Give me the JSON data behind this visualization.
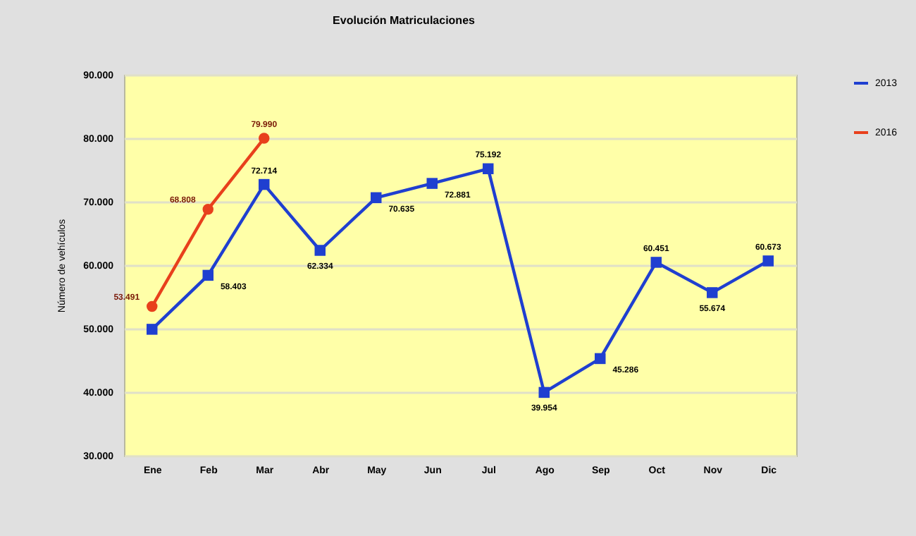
{
  "chart_data": {
    "type": "line",
    "title": "Evolución  Matriculaciones",
    "ylabel": "Número de vehículos",
    "categories": [
      "Ene",
      "Feb",
      "Mar",
      "Abr",
      "May",
      "Jun",
      "Jul",
      "Ago",
      "Sep",
      "Oct",
      "Nov",
      "Dic"
    ],
    "series": [
      {
        "name": "2013",
        "color": "#1f3fd0",
        "marker": "square",
        "values": [
          49900,
          58403,
          72714,
          62334,
          70635,
          72881,
          75192,
          39954,
          45286,
          60451,
          55674,
          60673
        ],
        "value_labels": [
          null,
          "58.403",
          "72.714",
          "62.334",
          "70.635",
          "72.881",
          "75.192",
          "39.954",
          "45.286",
          "60.451",
          "55.674",
          "60.673"
        ]
      },
      {
        "name": "2016",
        "color": "#e8401c",
        "marker": "circle",
        "values": [
          53491,
          68808,
          79990,
          null,
          null,
          null,
          null,
          null,
          null,
          null,
          null,
          null
        ],
        "value_labels": [
          "53.491",
          "68.808",
          "79.990",
          null,
          null,
          null,
          null,
          null,
          null,
          null,
          null,
          null
        ]
      }
    ],
    "ylim": [
      30000,
      90000
    ],
    "yticks": [
      {
        "value": 30000,
        "label": "30.000"
      },
      {
        "value": 40000,
        "label": "40.000"
      },
      {
        "value": 50000,
        "label": "50.000"
      },
      {
        "value": 60000,
        "label": "60.000"
      },
      {
        "value": 70000,
        "label": "70.000"
      },
      {
        "value": 80000,
        "label": "80.000"
      },
      {
        "value": 90000,
        "label": "90.000"
      }
    ],
    "grid": "y",
    "legend": "right"
  }
}
